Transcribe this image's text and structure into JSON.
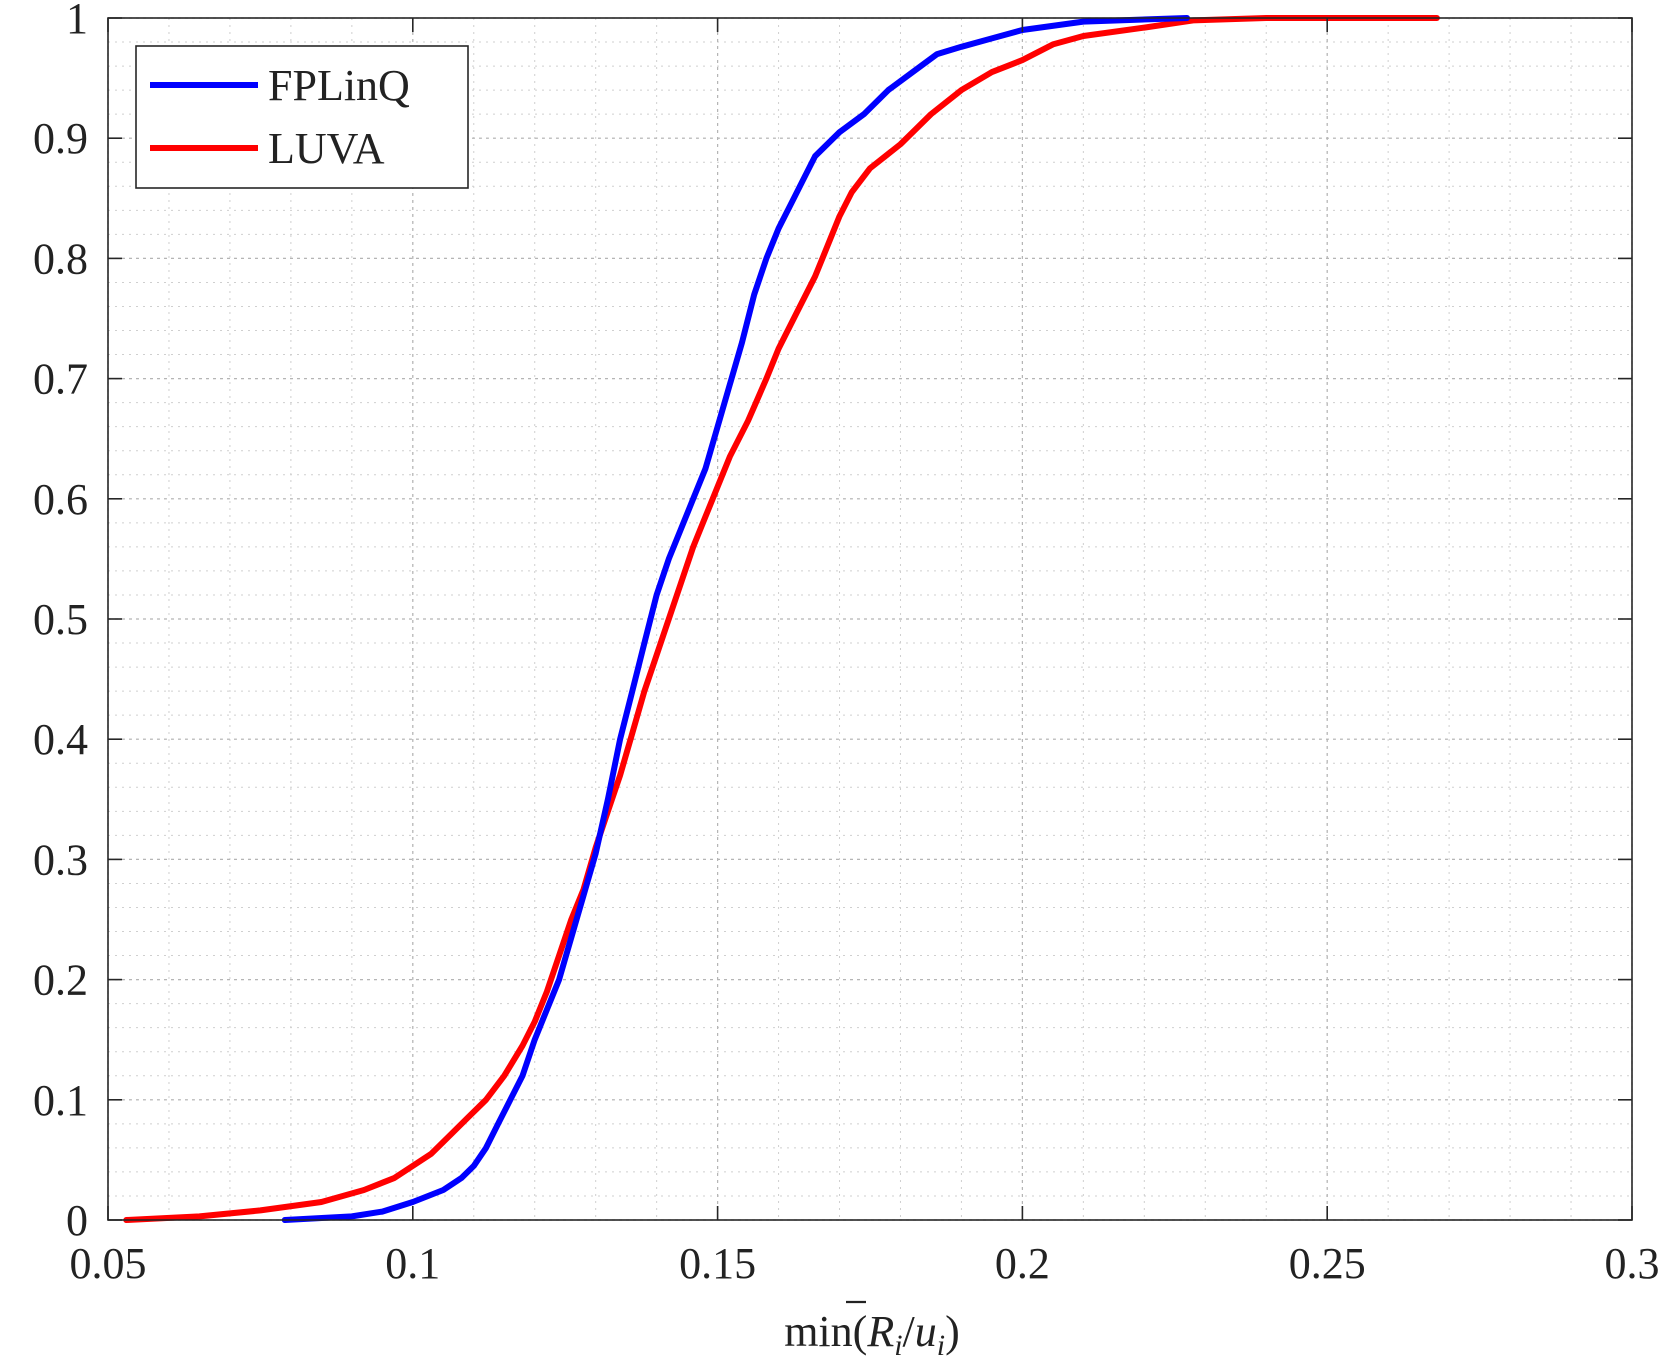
{
  "chart_data": {
    "type": "line",
    "title": "",
    "xlabel": "min(R̄ᵢ/uᵢ)",
    "xlabel_parts": {
      "func": "min(",
      "var": "R",
      "sub1": "i",
      "slash": "/",
      "var2": "u",
      "sub2": "i",
      "close": ")"
    },
    "ylabel": "",
    "xlim": [
      0.05,
      0.3
    ],
    "ylim": [
      0,
      1
    ],
    "xticks": [
      0.05,
      0.1,
      0.15,
      0.2,
      0.25,
      0.3
    ],
    "xtick_labels": [
      "0.05",
      "0.1",
      "0.15",
      "0.2",
      "0.25",
      "0.3"
    ],
    "yticks": [
      0,
      0.1,
      0.2,
      0.3,
      0.4,
      0.5,
      0.6,
      0.7,
      0.8,
      0.9,
      1
    ],
    "ytick_labels": [
      "0",
      "0.1",
      "0.2",
      "0.3",
      "0.4",
      "0.5",
      "0.6",
      "0.7",
      "0.8",
      "0.9",
      "1"
    ],
    "grid": true,
    "minor_grid": true,
    "legend_position": "top-left",
    "series": [
      {
        "name": "FPLinQ",
        "color": "#0000ff",
        "points": [
          [
            0.079,
            0.0
          ],
          [
            0.09,
            0.003
          ],
          [
            0.095,
            0.007
          ],
          [
            0.1,
            0.015
          ],
          [
            0.105,
            0.025
          ],
          [
            0.108,
            0.035
          ],
          [
            0.11,
            0.045
          ],
          [
            0.112,
            0.06
          ],
          [
            0.114,
            0.08
          ],
          [
            0.116,
            0.1
          ],
          [
            0.118,
            0.12
          ],
          [
            0.12,
            0.15
          ],
          [
            0.122,
            0.175
          ],
          [
            0.124,
            0.2
          ],
          [
            0.126,
            0.235
          ],
          [
            0.128,
            0.27
          ],
          [
            0.13,
            0.305
          ],
          [
            0.132,
            0.35
          ],
          [
            0.134,
            0.4
          ],
          [
            0.136,
            0.44
          ],
          [
            0.138,
            0.48
          ],
          [
            0.14,
            0.52
          ],
          [
            0.142,
            0.55
          ],
          [
            0.144,
            0.575
          ],
          [
            0.146,
            0.6
          ],
          [
            0.148,
            0.625
          ],
          [
            0.15,
            0.66
          ],
          [
            0.152,
            0.695
          ],
          [
            0.154,
            0.73
          ],
          [
            0.156,
            0.77
          ],
          [
            0.158,
            0.8
          ],
          [
            0.16,
            0.825
          ],
          [
            0.162,
            0.845
          ],
          [
            0.164,
            0.865
          ],
          [
            0.166,
            0.885
          ],
          [
            0.17,
            0.905
          ],
          [
            0.174,
            0.92
          ],
          [
            0.178,
            0.94
          ],
          [
            0.182,
            0.955
          ],
          [
            0.186,
            0.97
          ],
          [
            0.19,
            0.976
          ],
          [
            0.195,
            0.983
          ],
          [
            0.2,
            0.99
          ],
          [
            0.21,
            0.997
          ],
          [
            0.227,
            1.0
          ]
        ]
      },
      {
        "name": "LUVA",
        "color": "#ff0000",
        "points": [
          [
            0.053,
            0.0
          ],
          [
            0.065,
            0.003
          ],
          [
            0.075,
            0.008
          ],
          [
            0.085,
            0.015
          ],
          [
            0.092,
            0.025
          ],
          [
            0.097,
            0.035
          ],
          [
            0.1,
            0.045
          ],
          [
            0.103,
            0.055
          ],
          [
            0.106,
            0.07
          ],
          [
            0.109,
            0.085
          ],
          [
            0.112,
            0.1
          ],
          [
            0.115,
            0.12
          ],
          [
            0.118,
            0.145
          ],
          [
            0.12,
            0.165
          ],
          [
            0.122,
            0.19
          ],
          [
            0.124,
            0.22
          ],
          [
            0.126,
            0.25
          ],
          [
            0.128,
            0.275
          ],
          [
            0.13,
            0.31
          ],
          [
            0.132,
            0.34
          ],
          [
            0.134,
            0.37
          ],
          [
            0.136,
            0.405
          ],
          [
            0.138,
            0.44
          ],
          [
            0.14,
            0.47
          ],
          [
            0.142,
            0.5
          ],
          [
            0.144,
            0.53
          ],
          [
            0.146,
            0.56
          ],
          [
            0.148,
            0.585
          ],
          [
            0.15,
            0.61
          ],
          [
            0.152,
            0.635
          ],
          [
            0.155,
            0.665
          ],
          [
            0.158,
            0.7
          ],
          [
            0.16,
            0.725
          ],
          [
            0.163,
            0.755
          ],
          [
            0.166,
            0.785
          ],
          [
            0.168,
            0.81
          ],
          [
            0.17,
            0.835
          ],
          [
            0.172,
            0.855
          ],
          [
            0.175,
            0.875
          ],
          [
            0.18,
            0.895
          ],
          [
            0.185,
            0.92
          ],
          [
            0.19,
            0.94
          ],
          [
            0.195,
            0.955
          ],
          [
            0.2,
            0.965
          ],
          [
            0.205,
            0.978
          ],
          [
            0.21,
            0.985
          ],
          [
            0.22,
            0.992
          ],
          [
            0.228,
            0.998
          ],
          [
            0.24,
            1.0
          ],
          [
            0.268,
            1.0
          ]
        ]
      }
    ]
  }
}
